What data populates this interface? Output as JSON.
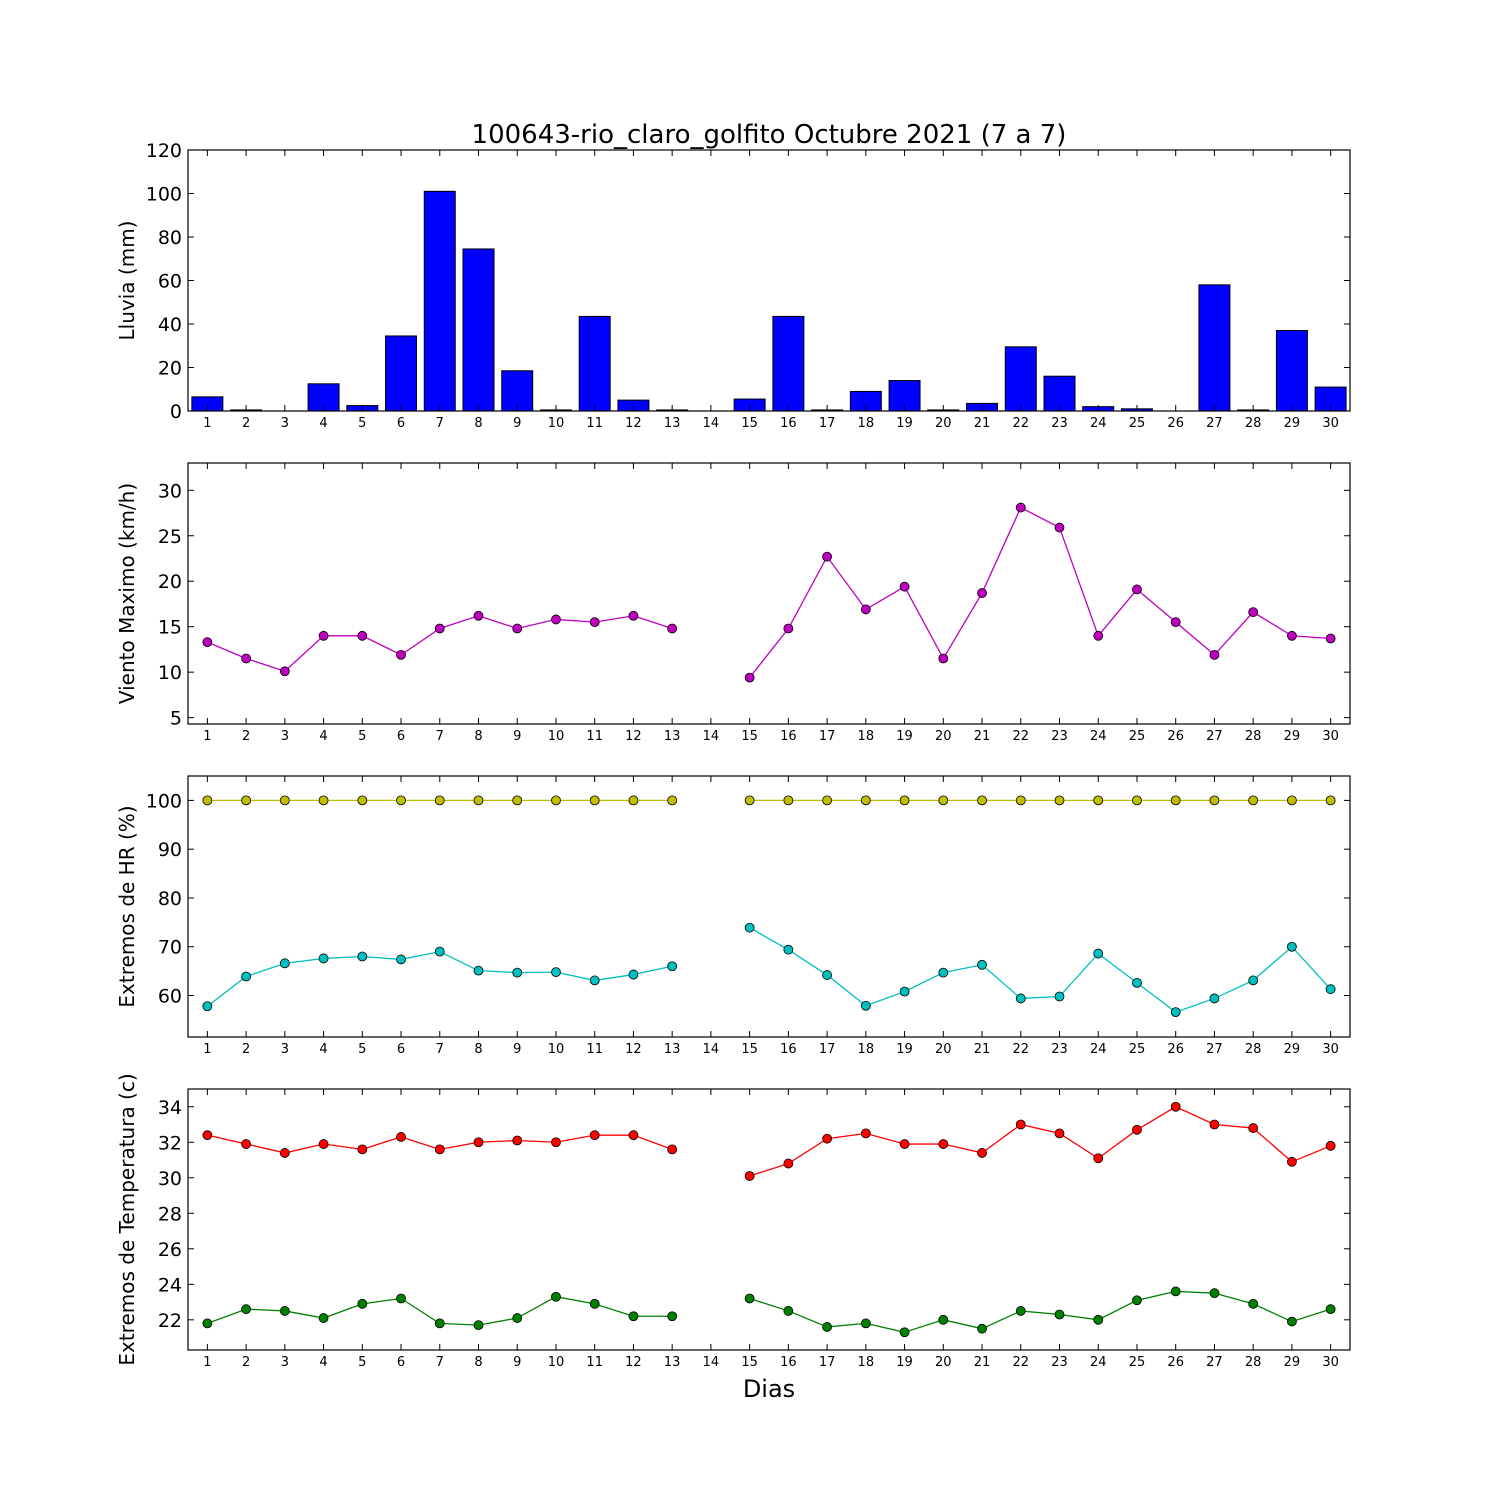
{
  "chart_data": {
    "title": "100643-rio_claro_golfito Octubre 2021  (7 a 7)",
    "xlabel": "Dias",
    "days": [
      1,
      2,
      3,
      4,
      5,
      6,
      7,
      8,
      9,
      10,
      11,
      12,
      13,
      14,
      15,
      16,
      17,
      18,
      19,
      20,
      21,
      22,
      23,
      24,
      25,
      26,
      27,
      28,
      29,
      30
    ],
    "xlim": [
      0.5,
      30.5
    ],
    "panels": [
      {
        "type": "bar",
        "ylabel": "Lluvia (mm)",
        "ylim": [
          0,
          120
        ],
        "yticks": [
          0,
          20,
          40,
          60,
          80,
          100,
          120
        ],
        "series": [
          {
            "color": "#0000ff",
            "values": [
              6.5,
              0.5,
              0,
              12.5,
              2.5,
              34.5,
              101,
              74.5,
              18.5,
              0.5,
              43.5,
              5,
              0.5,
              0,
              5.5,
              43.5,
              0.5,
              9,
              14,
              0.5,
              3.5,
              29.5,
              16,
              2,
              1,
              0,
              58,
              0.5,
              37,
              11
            ]
          }
        ]
      },
      {
        "type": "line",
        "ylabel": "Viento Maximo (km/h)",
        "ylim": [
          4.3,
          33.0
        ],
        "yticks": [
          5,
          10,
          15,
          20,
          25,
          30
        ],
        "series": [
          {
            "color": "#bf00bf",
            "values": [
              13.3,
              11.5,
              10.1,
              14.0,
              14.0,
              11.9,
              14.8,
              16.2,
              14.8,
              15.8,
              15.5,
              16.2,
              14.8,
              null,
              9.4,
              14.8,
              22.7,
              16.9,
              19.4,
              11.5,
              18.7,
              28.1,
              25.9,
              14.0,
              19.1,
              15.5,
              11.9,
              16.6,
              14.0,
              13.7
            ]
          }
        ]
      },
      {
        "type": "line",
        "ylabel": "Extremos de HR (%)",
        "ylim": [
          51.5,
          105.0
        ],
        "yticks": [
          60,
          70,
          80,
          90,
          100
        ],
        "series": [
          {
            "color": "#bfbf00",
            "values": [
              100,
              100,
              100,
              100,
              100,
              100,
              100,
              100,
              100,
              100,
              100,
              100,
              100,
              null,
              100,
              100,
              100,
              100,
              100,
              100,
              100,
              100,
              100,
              100,
              100,
              100,
              100,
              100,
              100,
              100
            ]
          },
          {
            "color": "#00bfbf",
            "values": [
              57.8,
              63.9,
              66.6,
              67.6,
              68.0,
              67.4,
              69.0,
              65.1,
              64.7,
              64.8,
              63.1,
              64.3,
              66.0,
              null,
              73.9,
              69.4,
              64.2,
              57.9,
              60.8,
              64.7,
              66.3,
              59.4,
              59.8,
              68.6,
              62.6,
              56.6,
              59.4,
              63.1,
              70.0,
              61.3
            ]
          }
        ]
      },
      {
        "type": "line",
        "ylabel": "Extremos de Temperatura (c)",
        "ylim": [
          20.3,
          35.0
        ],
        "yticks": [
          22,
          24,
          26,
          28,
          30,
          32,
          34
        ],
        "series": [
          {
            "color": "#ff0000",
            "values": [
              32.4,
              31.9,
              31.4,
              31.9,
              31.6,
              32.3,
              31.6,
              32.0,
              32.1,
              32.0,
              32.4,
              32.4,
              31.6,
              null,
              30.1,
              30.8,
              32.2,
              32.5,
              31.9,
              31.9,
              31.4,
              33.0,
              32.5,
              31.1,
              32.7,
              34.0,
              33.0,
              32.8,
              30.9,
              31.8
            ]
          },
          {
            "color": "#008000",
            "values": [
              21.8,
              22.6,
              22.5,
              22.1,
              22.9,
              23.2,
              21.8,
              21.7,
              22.1,
              23.3,
              22.9,
              22.2,
              22.2,
              null,
              23.2,
              22.5,
              21.6,
              21.8,
              21.3,
              22.0,
              21.5,
              22.5,
              22.3,
              22.0,
              23.1,
              23.6,
              23.5,
              22.9,
              21.9,
              22.6
            ]
          }
        ]
      }
    ]
  }
}
